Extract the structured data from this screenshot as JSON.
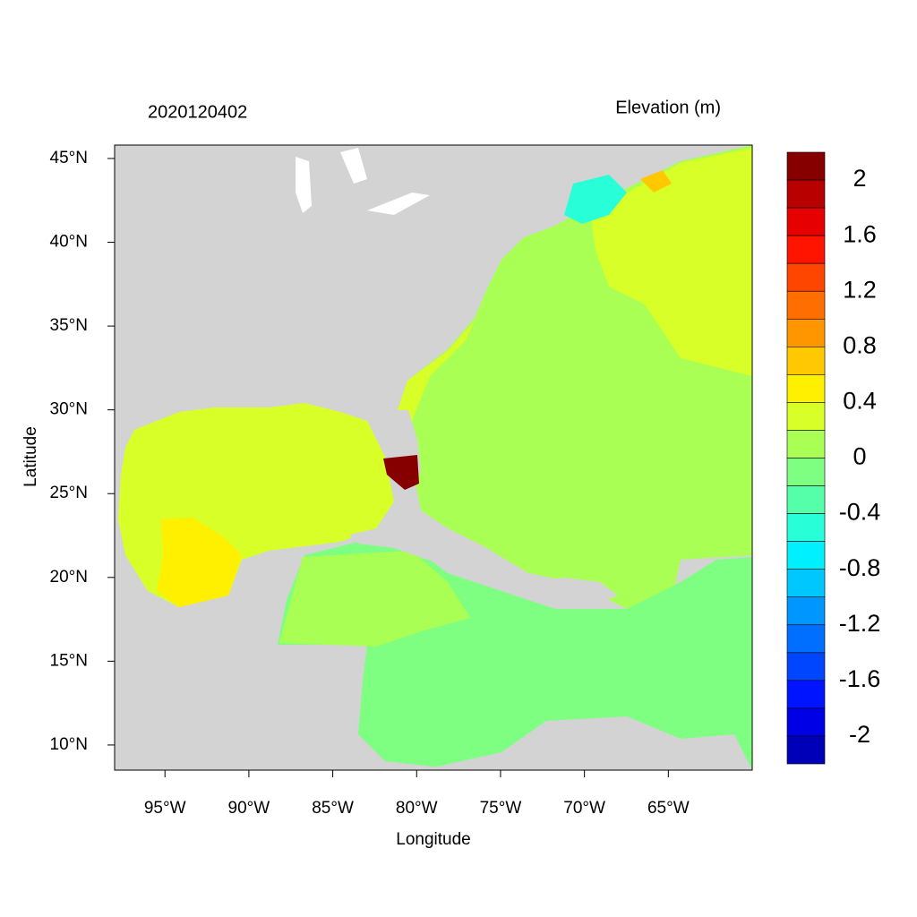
{
  "title_left": "2020120402",
  "title_right": "Elevation (m)",
  "x_axis": {
    "label": "Longitude",
    "lim": [
      -98,
      -60
    ],
    "ticks": [
      {
        "value": -95,
        "label": "95°W"
      },
      {
        "value": -90,
        "label": "90°W"
      },
      {
        "value": -85,
        "label": "85°W"
      },
      {
        "value": -80,
        "label": "80°W"
      },
      {
        "value": -75,
        "label": "75°W"
      },
      {
        "value": -70,
        "label": "70°W"
      },
      {
        "value": -65,
        "label": "65°W"
      }
    ]
  },
  "y_axis": {
    "label": "Latitude",
    "lim": [
      8.5,
      45.8
    ],
    "ticks": [
      {
        "value": 10,
        "label": "10°N"
      },
      {
        "value": 15,
        "label": "15°N"
      },
      {
        "value": 20,
        "label": "20°N"
      },
      {
        "value": 25,
        "label": "25°N"
      },
      {
        "value": 30,
        "label": "30°N"
      },
      {
        "value": 35,
        "label": "35°N"
      },
      {
        "value": 40,
        "label": "40°N"
      },
      {
        "value": 45,
        "label": "45°N"
      }
    ]
  },
  "colorbar": {
    "colors": [
      "#870000",
      "#b80000",
      "#e60000",
      "#ff1400",
      "#ff4600",
      "#ff6e00",
      "#ff9600",
      "#ffc800",
      "#fff000",
      "#d8ff28",
      "#aaff55",
      "#7eff82",
      "#55ffaa",
      "#28ffd8",
      "#00f0ff",
      "#00c8ff",
      "#0096ff",
      "#006eff",
      "#0046ff",
      "#0014ff",
      "#0000e6",
      "#0000b8"
    ],
    "labels": [
      2,
      1.6,
      1.2,
      0.8,
      0.4,
      0,
      -0.4,
      -0.8,
      -1.2,
      -1.6,
      -2
    ]
  }
}
